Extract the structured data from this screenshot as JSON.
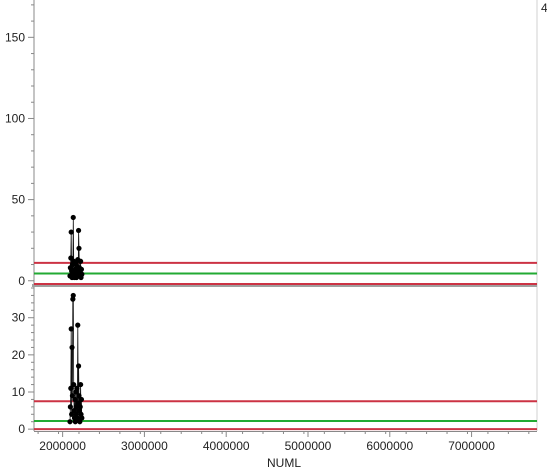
{
  "chart_data": {
    "type": "control-chart",
    "xlabel": "NUML",
    "x_ticks": [
      2000000,
      3000000,
      4000000,
      5000000,
      6000000,
      7000000
    ],
    "x_tick_labels": [
      "2000000",
      "3000000",
      "4000000",
      "5000000",
      "6000000",
      "7000000"
    ],
    "xlim": [
      1650000,
      7800000
    ],
    "panels": [
      {
        "ylim": [
          -2,
          173
        ],
        "y_ticks": [
          0,
          50,
          100,
          150
        ],
        "y_tick_labels": [
          "0",
          "50",
          "100",
          "150"
        ],
        "ucl": 11,
        "center": 4.5,
        "lcl": -2,
        "points": [
          [
            2090000,
            3
          ],
          [
            2095000,
            8
          ],
          [
            2100000,
            14
          ],
          [
            2105000,
            30
          ],
          [
            2110000,
            6
          ],
          [
            2115000,
            2
          ],
          [
            2120000,
            10
          ],
          [
            2125000,
            4
          ],
          [
            2130000,
            39
          ],
          [
            2135000,
            12
          ],
          [
            2140000,
            5
          ],
          [
            2145000,
            2
          ],
          [
            2150000,
            7
          ],
          [
            2155000,
            3
          ],
          [
            2160000,
            11
          ],
          [
            2165000,
            6
          ],
          [
            2170000,
            2
          ],
          [
            2175000,
            9
          ],
          [
            2180000,
            4
          ],
          [
            2185000,
            13
          ],
          [
            2190000,
            5
          ],
          [
            2195000,
            31
          ],
          [
            2200000,
            20
          ],
          [
            2205000,
            8
          ],
          [
            2210000,
            3
          ],
          [
            2215000,
            6
          ],
          [
            2220000,
            12
          ],
          [
            2225000,
            2
          ],
          [
            2230000,
            7
          ],
          [
            2235000,
            4
          ]
        ]
      },
      {
        "ylim": [
          -0.5,
          38
        ],
        "y_ticks": [
          0,
          10,
          20,
          30
        ],
        "y_tick_labels": [
          "0",
          "10",
          "20",
          "30"
        ],
        "ucl": 7.5,
        "center": 2.2,
        "lcl": 0,
        "points": [
          [
            2090000,
            2
          ],
          [
            2095000,
            6
          ],
          [
            2100000,
            11
          ],
          [
            2105000,
            27
          ],
          [
            2110000,
            4
          ],
          [
            2115000,
            22
          ],
          [
            2120000,
            9
          ],
          [
            2125000,
            35
          ],
          [
            2130000,
            36
          ],
          [
            2135000,
            12
          ],
          [
            2140000,
            5
          ],
          [
            2145000,
            3
          ],
          [
            2150000,
            8
          ],
          [
            2155000,
            2
          ],
          [
            2160000,
            10
          ],
          [
            2165000,
            6
          ],
          [
            2170000,
            4
          ],
          [
            2175000,
            11
          ],
          [
            2180000,
            3
          ],
          [
            2185000,
            28
          ],
          [
            2190000,
            7
          ],
          [
            2195000,
            17
          ],
          [
            2200000,
            9
          ],
          [
            2205000,
            5
          ],
          [
            2210000,
            2
          ],
          [
            2215000,
            6
          ],
          [
            2220000,
            12
          ],
          [
            2225000,
            4
          ],
          [
            2230000,
            8
          ],
          [
            2235000,
            3
          ]
        ]
      }
    ],
    "colors": {
      "limit": "#cc3344",
      "center": "#22aa33",
      "points": "#000000",
      "axis": "#888888",
      "divider": "#a0a0a0"
    }
  }
}
